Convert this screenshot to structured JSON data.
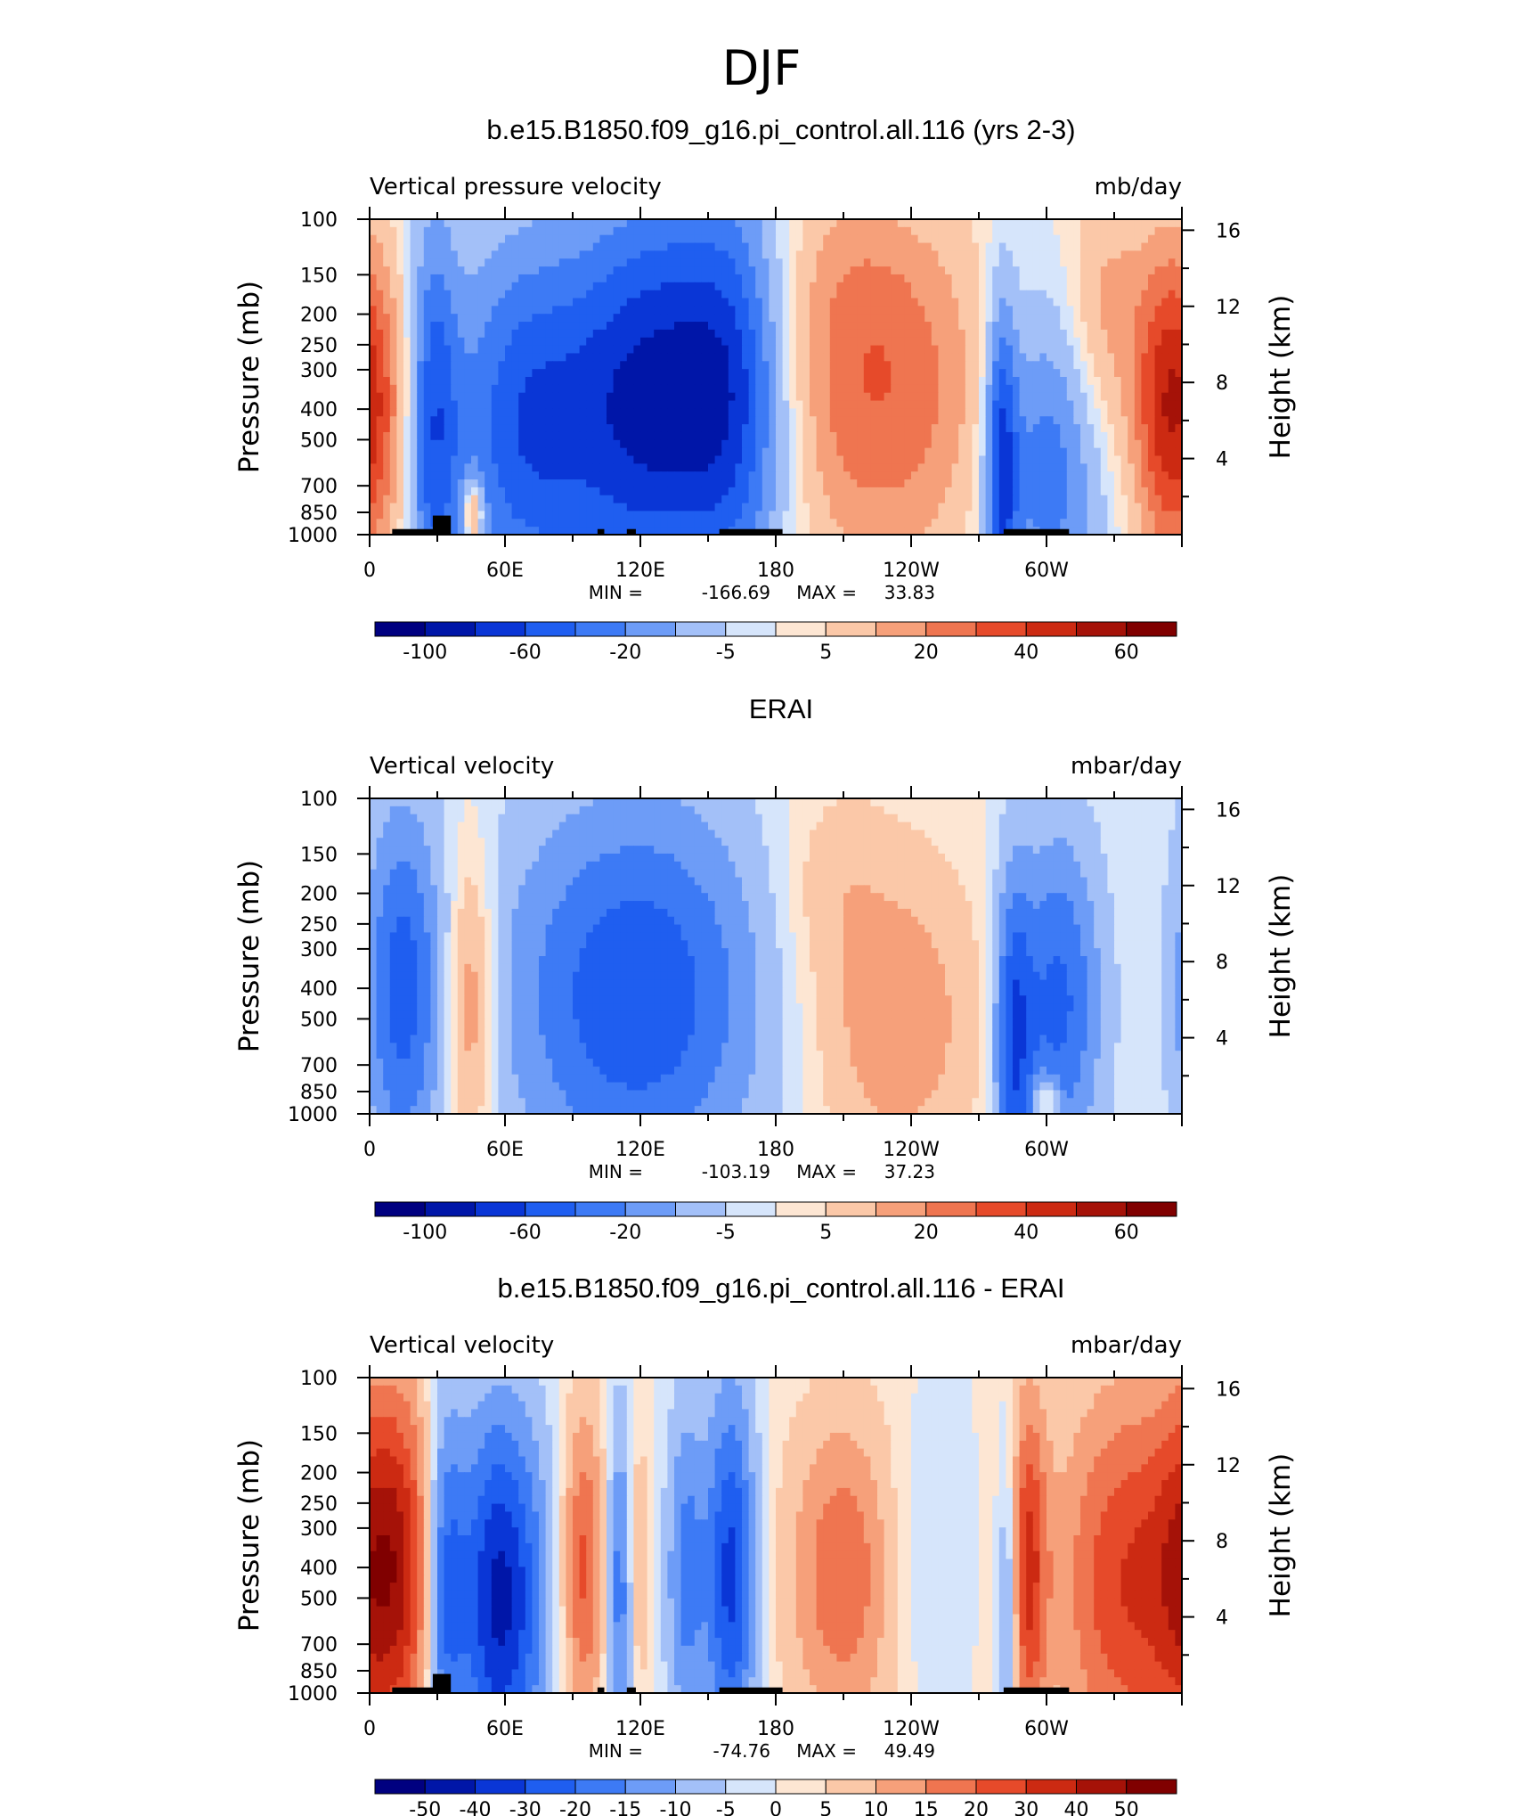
{
  "figure_title": "DJF",
  "colors": [
    "#000080",
    "#0016a8",
    "#0a36d6",
    "#1f5ef0",
    "#3d7af5",
    "#6d9cf7",
    "#a3c0f8",
    "#d6e5fb",
    "#fde6d3",
    "#fbc8a8",
    "#f6a07a",
    "#ef7550",
    "#e64a2a",
    "#cc2a12",
    "#a51208",
    "#800000"
  ],
  "chart_data": [
    {
      "type": "heatmap",
      "title": "b.e15.B1850.f09_g16.pi_control.all.116 (yrs 2-3)",
      "left_label": "Vertical pressure velocity",
      "units": "mb/day",
      "ylabel": "Pressure (mb)",
      "ylabel_right": "Height (km)",
      "x_ticks": [
        "0",
        "60E",
        "120E",
        "180",
        "120W",
        "60W"
      ],
      "y_ticks": [
        "100",
        "150",
        "200",
        "250",
        "300",
        "400",
        "500",
        "700",
        "850",
        "1000"
      ],
      "y_ticks_right": [
        "16",
        "12",
        "8",
        "4"
      ],
      "min_label": "MIN =",
      "min_value": "-166.69",
      "max_label": "MAX =",
      "max_value": "33.83",
      "colorbar_labels": [
        "-100",
        "-60",
        "-20",
        "-5",
        "5",
        "20",
        "40",
        "60"
      ],
      "colorbar_label_positions": [
        1,
        3,
        5,
        7,
        9,
        11,
        13,
        15
      ],
      "terrain": [
        [
          10,
          35
        ],
        [
          28,
          36
        ],
        [
          101,
          104
        ],
        [
          114,
          118
        ],
        [
          155,
          183
        ],
        [
          281,
          310
        ]
      ],
      "features": [
        {
          "lon": 0,
          "p": 400,
          "w": 14,
          "h": 2.2,
          "a": 2
        },
        {
          "lon": 28,
          "p": 450,
          "w": 8,
          "h": 3,
          "a": -4
        },
        {
          "lon": 46,
          "p": 850,
          "w": 3,
          "h": 0.5,
          "a": 4
        },
        {
          "lon": 70,
          "p": 450,
          "w": 24,
          "h": 2.8,
          "a": -4.5
        },
        {
          "lon": 120,
          "p": 380,
          "w": 22,
          "h": 3,
          "a": -5
        },
        {
          "lon": 160,
          "p": 350,
          "w": 20,
          "h": 3,
          "a": -5.5
        },
        {
          "lon": 225,
          "p": 380,
          "w": 36,
          "h": 2.5,
          "a": 3.5
        },
        {
          "lon": 210,
          "p": 150,
          "w": 30,
          "h": 1.5,
          "a": 1
        },
        {
          "lon": 280,
          "p": 600,
          "w": 5,
          "h": 2.5,
          "a": -4.5
        },
        {
          "lon": 300,
          "p": 600,
          "w": 18,
          "h": 2.4,
          "a": -3.5
        },
        {
          "lon": 325,
          "p": 200,
          "w": 12,
          "h": 2,
          "a": 2
        },
        {
          "lon": 355,
          "p": 380,
          "w": 12,
          "h": 2.4,
          "a": 4
        }
      ]
    },
    {
      "type": "heatmap",
      "title": "ERAI",
      "left_label": "Vertical velocity",
      "units": "mbar/day",
      "ylabel": "Pressure (mb)",
      "ylabel_right": "Height (km)",
      "x_ticks": [
        "0",
        "60E",
        "120E",
        "180",
        "120W",
        "60W"
      ],
      "y_ticks": [
        "100",
        "150",
        "200",
        "250",
        "300",
        "400",
        "500",
        "700",
        "850",
        "1000"
      ],
      "y_ticks_right": [
        "16",
        "12",
        "8",
        "4"
      ],
      "min_label": "MIN =",
      "min_value": "-103.19",
      "max_label": "MAX =",
      "max_value": "37.23",
      "colorbar_labels": [
        "-100",
        "-60",
        "-20",
        "-5",
        "5",
        "20",
        "40",
        "60"
      ],
      "colorbar_label_positions": [
        1,
        3,
        5,
        7,
        9,
        11,
        13,
        15
      ],
      "terrain": [],
      "features": [
        {
          "lon": 14,
          "p": 400,
          "w": 12,
          "h": 2.8,
          "a": -4
        },
        {
          "lon": 45,
          "p": 450,
          "w": 7,
          "h": 2.2,
          "a": 3
        },
        {
          "lon": 118,
          "p": 420,
          "w": 42,
          "h": 3,
          "a": -4.5
        },
        {
          "lon": 232,
          "p": 500,
          "w": 28,
          "h": 2.4,
          "a": 2.5
        },
        {
          "lon": 203,
          "p": 180,
          "w": 18,
          "h": 1.5,
          "a": 1
        },
        {
          "lon": 285,
          "p": 600,
          "w": 6,
          "h": 2.5,
          "a": -4
        },
        {
          "lon": 305,
          "p": 450,
          "w": 14,
          "h": 2.6,
          "a": -4
        },
        {
          "lon": 300,
          "p": 920,
          "w": 4,
          "h": 0.4,
          "a": 3
        }
      ]
    },
    {
      "type": "heatmap",
      "title": "b.e15.B1850.f09_g16.pi_control.all.116 - ERAI",
      "left_label": "Vertical velocity",
      "units": "mbar/day",
      "ylabel": "Pressure (mb)",
      "ylabel_right": "Height (km)",
      "x_ticks": [
        "0",
        "60E",
        "120E",
        "180",
        "120W",
        "60W"
      ],
      "y_ticks": [
        "100",
        "150",
        "200",
        "250",
        "300",
        "400",
        "500",
        "700",
        "850",
        "1000"
      ],
      "y_ticks_right": [
        "16",
        "12",
        "8",
        "4"
      ],
      "min_label": "MIN =",
      "min_value": "-74.76",
      "max_label": "MAX =",
      "max_value": "49.49",
      "colorbar_labels": [
        "-50",
        "-40",
        "-30",
        "-20",
        "-15",
        "-10",
        "-5",
        "0",
        "5",
        "10",
        "15",
        "20",
        "30",
        "40",
        "50"
      ],
      "colorbar_label_positions": [
        1,
        2,
        3,
        4,
        5,
        6,
        7,
        8,
        9,
        10,
        11,
        12,
        13,
        14,
        15
      ],
      "terrain": [
        [
          10,
          35
        ],
        [
          28,
          36
        ],
        [
          101,
          104
        ],
        [
          114,
          118
        ],
        [
          155,
          183
        ],
        [
          281,
          310
        ]
      ],
      "features": [
        {
          "lon": 10,
          "p": 400,
          "w": 14,
          "h": 2.8,
          "a": 5.5
        },
        {
          "lon": 33,
          "p": 450,
          "w": 6,
          "h": 2.8,
          "a": -4
        },
        {
          "lon": 58,
          "p": 500,
          "w": 14,
          "h": 2.8,
          "a": -6
        },
        {
          "lon": 95,
          "p": 400,
          "w": 7,
          "h": 2.4,
          "a": 4
        },
        {
          "lon": 112,
          "p": 450,
          "w": 5,
          "h": 2.4,
          "a": -4
        },
        {
          "lon": 118,
          "p": 400,
          "w": 4,
          "h": 2,
          "a": 3
        },
        {
          "lon": 140,
          "p": 420,
          "w": 6,
          "h": 2.5,
          "a": -3
        },
        {
          "lon": 160,
          "p": 420,
          "w": 8,
          "h": 2.8,
          "a": -5
        },
        {
          "lon": 210,
          "p": 420,
          "w": 18,
          "h": 2.4,
          "a": 3.5
        },
        {
          "lon": 242,
          "p": 380,
          "w": 12,
          "h": 2,
          "a": -1
        },
        {
          "lon": 283,
          "p": 600,
          "w": 3,
          "h": 2.5,
          "a": -3
        },
        {
          "lon": 292,
          "p": 400,
          "w": 6,
          "h": 2.6,
          "a": 4.5
        },
        {
          "lon": 335,
          "p": 450,
          "w": 22,
          "h": 3,
          "a": 4.5
        }
      ]
    }
  ]
}
